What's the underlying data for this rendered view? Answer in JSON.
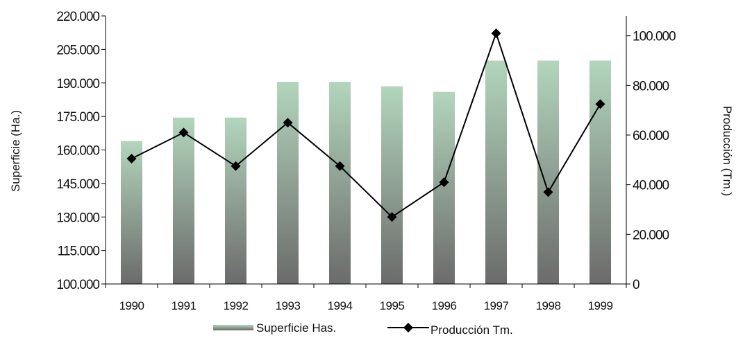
{
  "chart_data": {
    "type": "bar",
    "categories": [
      "1990",
      "1991",
      "1992",
      "1993",
      "1994",
      "1995",
      "1996",
      "1997",
      "1998",
      "1999"
    ],
    "series": [
      {
        "name": "Superficie Has.",
        "type": "bar",
        "axis": "left",
        "values": [
          164000,
          174500,
          174500,
          190500,
          190500,
          188500,
          186000,
          200000,
          200000,
          200000
        ]
      },
      {
        "name": "Producción Tm.",
        "type": "line",
        "axis": "right",
        "marker": "diamond",
        "values": [
          50500,
          61000,
          47500,
          65000,
          47500,
          27000,
          41000,
          101000,
          37000,
          72500
        ]
      }
    ],
    "ylabel": "Superficie (Ha.)",
    "y2label": "Producción (Tm.)",
    "ylim": [
      100000,
      220000
    ],
    "y2lim": [
      0,
      108000
    ],
    "yticks": [
      "100.000",
      "115.000",
      "130.000",
      "145.000",
      "160.000",
      "175.000",
      "190.000",
      "205.000",
      "220.000"
    ],
    "y2ticks": [
      "0",
      "20.000",
      "40.000",
      "60.000",
      "80.000",
      "100.000"
    ],
    "legend_position": "bottom",
    "grid": false,
    "colors": {
      "bar_top": "#b2d6bc",
      "bar_bottom": "#6b6b6b",
      "line": "#000000",
      "axis": "#000000"
    }
  }
}
